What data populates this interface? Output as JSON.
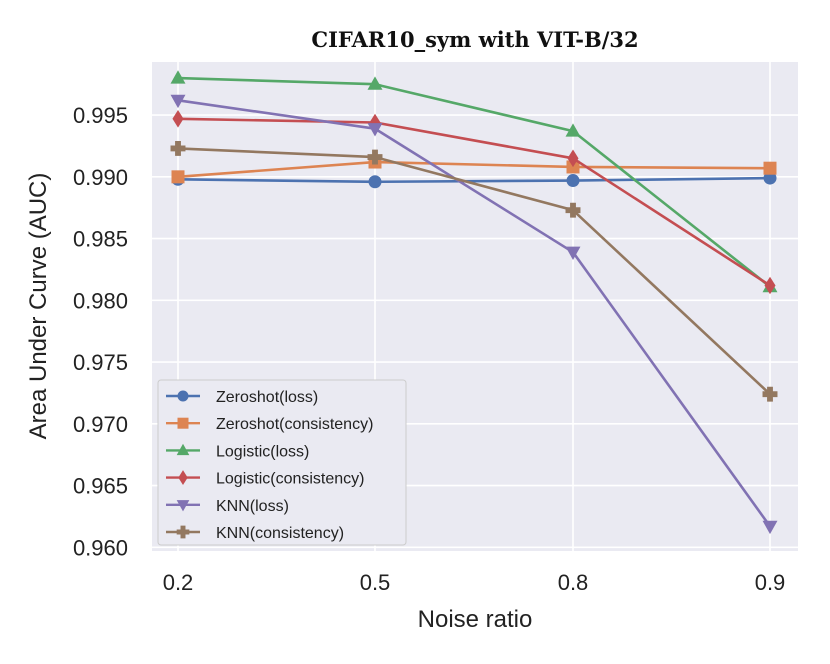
{
  "chart_data": {
    "type": "line",
    "title": "CIFAR10_sym with VIT-B/32",
    "xlabel": "Noise ratio",
    "ylabel": "Area Under Curve (AUC)",
    "categories": [
      "0.2",
      "0.5",
      "0.8",
      "0.9"
    ],
    "ylim": [
      0.9597,
      0.9993
    ],
    "yticks": [
      "0.960",
      "0.965",
      "0.970",
      "0.975",
      "0.980",
      "0.985",
      "0.990",
      "0.995"
    ],
    "grid": true,
    "legend_position": "lower-left",
    "series": [
      {
        "name": "Zeroshot(loss)",
        "color": "#4c72b0",
        "marker": "circle",
        "values": [
          0.9898,
          0.9896,
          0.9897,
          0.9899
        ]
      },
      {
        "name": "Zeroshot(consistency)",
        "color": "#dd8452",
        "marker": "square",
        "values": [
          0.99,
          0.9912,
          0.9908,
          0.9907
        ]
      },
      {
        "name": "Logistic(loss)",
        "color": "#55a868",
        "marker": "triangle-up",
        "values": [
          0.998,
          0.9975,
          0.9937,
          0.9811
        ]
      },
      {
        "name": "Logistic(consistency)",
        "color": "#c44e52",
        "marker": "diamond",
        "values": [
          0.9947,
          0.9944,
          0.9915,
          0.9812
        ]
      },
      {
        "name": "KNN(loss)",
        "color": "#8172b3",
        "marker": "triangle-down",
        "values": [
          0.9962,
          0.9939,
          0.9839,
          0.9617
        ]
      },
      {
        "name": "KNN(consistency)",
        "color": "#937860",
        "marker": "plus",
        "values": [
          0.9923,
          0.9916,
          0.9873,
          0.9724
        ]
      }
    ]
  }
}
